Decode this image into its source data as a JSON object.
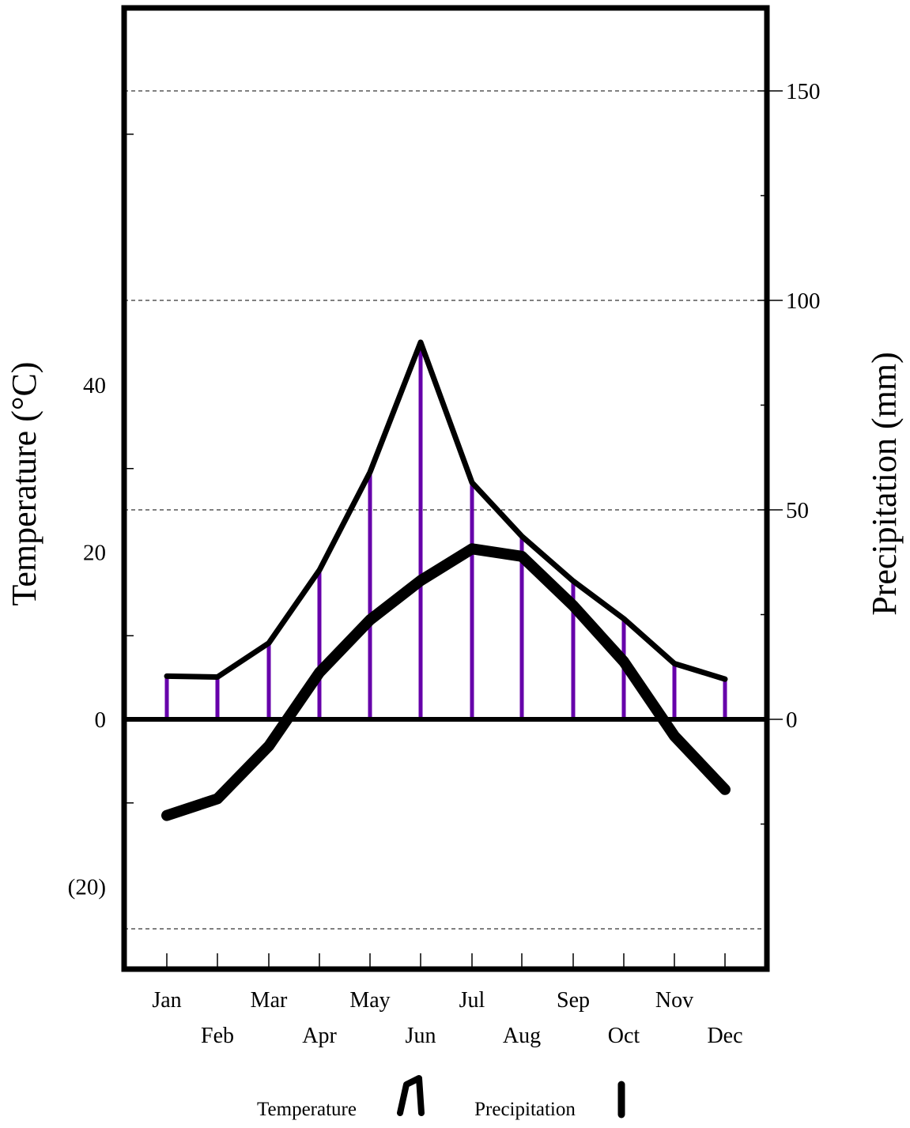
{
  "chart_data": {
    "type": "climograph",
    "categories": [
      "Jan",
      "Feb",
      "Mar",
      "Apr",
      "May",
      "Jun",
      "Jul",
      "Aug",
      "Sep",
      "Oct",
      "Nov",
      "Dec"
    ],
    "series": [
      {
        "name": "Temperature",
        "type": "line",
        "axis": "left",
        "unit": "°C",
        "values": [
          -11.5,
          -9.5,
          -3.2,
          5.6,
          11.9,
          16.6,
          20.4,
          19.5,
          13.6,
          6.9,
          -2,
          -8.4
        ]
      },
      {
        "name": "Precipitation",
        "type": "bar",
        "axis": "right",
        "unit": "mm",
        "values": [
          10.3,
          10.1,
          18.2,
          35.6,
          59,
          90,
          56.5,
          43.7,
          33,
          24,
          13.3,
          9.6
        ]
      }
    ],
    "left_axis": {
      "title": "Temperature (°C)",
      "ylim": [
        -30,
        85
      ],
      "ticks": [
        -20,
        0,
        20,
        40
      ],
      "tick_labels": [
        "(20)",
        "0",
        "20",
        "40"
      ]
    },
    "right_axis": {
      "title": "Precipitation (mm)",
      "ylim": [
        -60,
        170
      ],
      "ticks": [
        0,
        50,
        100,
        150
      ],
      "tick_labels": [
        "0",
        "50",
        "100",
        "150"
      ]
    },
    "gridlines_precip": [
      -50,
      50,
      100,
      150
    ],
    "legend": {
      "position": "bottom",
      "items": [
        "Temperature",
        "Precipitation"
      ]
    },
    "colors": {
      "precipitation_bar": "#6600aa",
      "temperature_line": "#000000",
      "frame": "#000000"
    }
  }
}
